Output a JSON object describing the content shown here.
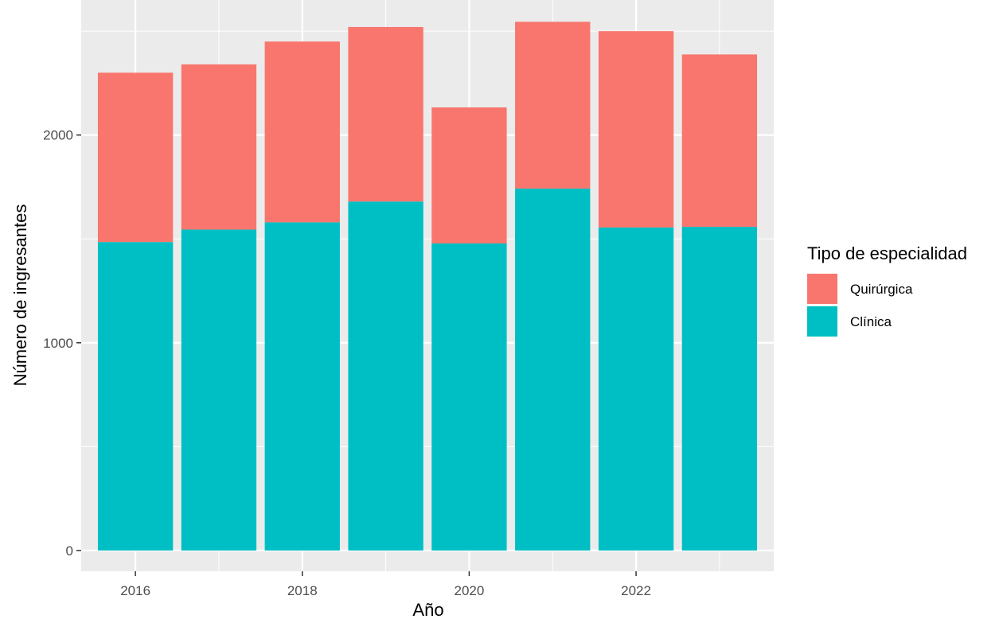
{
  "chart_data": {
    "type": "bar",
    "stacked": true,
    "x": [
      2016,
      2017,
      2018,
      2019,
      2020,
      2021,
      2022,
      2023
    ],
    "series": [
      {
        "name": "Clínica",
        "color": "#00BFC4",
        "values": [
          1485,
          1545,
          1580,
          1680,
          1478,
          1742,
          1555,
          1558
        ]
      },
      {
        "name": "Quirúrgica",
        "color": "#F8766D",
        "values": [
          815,
          795,
          870,
          840,
          655,
          803,
          945,
          830
        ]
      }
    ],
    "xlabel": "Año",
    "ylabel": "Número de ingresantes",
    "xticks": [
      2016,
      2018,
      2020,
      2022
    ],
    "xtick_labels": [
      "2016",
      "2018",
      "2020",
      "2022"
    ],
    "yticks": [
      0,
      1000,
      2000
    ],
    "ytick_labels": [
      "0",
      "1000",
      "2000"
    ],
    "ylim": [
      -100,
      2650
    ],
    "xlim": [
      2015.35,
      2023.65
    ],
    "grid": true,
    "legend": {
      "title": "Tipo de especialidad",
      "position": "right",
      "entries": [
        {
          "label": "Quirúrgica",
          "color": "#F8766D"
        },
        {
          "label": "Clínica",
          "color": "#00BFC4"
        }
      ]
    },
    "colors": {
      "panel_background": "#EBEBEB",
      "grid": "#FFFFFF"
    }
  }
}
